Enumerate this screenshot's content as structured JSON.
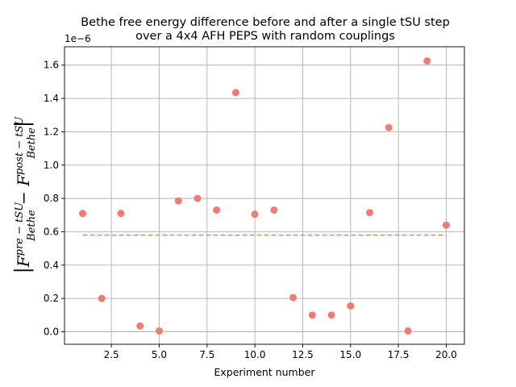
{
  "chart_data": {
    "type": "scatter",
    "title_lines": [
      "Bethe free energy difference before and after a single tSU step",
      "over a 4x4 AFH PEPS with random couplings"
    ],
    "xlabel": "Experiment number",
    "ylabel": {
      "pre": "pre − tSU",
      "post": "post − tSU",
      "sub": "Bethe"
    },
    "offset_text": "1e−6",
    "xlim": [
      0.05,
      20.95
    ],
    "ylim": [
      -0.075,
      1.71
    ],
    "xticks": [
      2.5,
      5.0,
      7.5,
      10.0,
      12.5,
      15.0,
      17.5,
      20.0
    ],
    "xtick_labels": [
      "2.5",
      "5.0",
      "7.5",
      "10.0",
      "12.5",
      "15.0",
      "17.5",
      "20.0"
    ],
    "yticks": [
      0.0,
      0.2,
      0.4,
      0.6,
      0.8,
      1.0,
      1.2,
      1.4,
      1.6
    ],
    "ytick_labels": [
      "0.0",
      "0.2",
      "0.4",
      "0.6",
      "0.8",
      "1.0",
      "1.2",
      "1.4",
      "1.6"
    ],
    "grid": true,
    "point_color": "#f07b72",
    "mean_line_color": "#f07b72",
    "mean_value": 0.58,
    "mean_x_range": [
      1,
      20
    ],
    "points": {
      "x": [
        1,
        2,
        3,
        4,
        5,
        6,
        7,
        8,
        9,
        10,
        11,
        12,
        13,
        14,
        15,
        16,
        17,
        18,
        19,
        20
      ],
      "y": [
        0.71,
        0.2,
        0.71,
        0.035,
        0.005,
        0.785,
        0.8,
        0.73,
        1.435,
        0.705,
        0.73,
        0.205,
        0.1,
        0.1,
        0.155,
        0.715,
        1.225,
        0.005,
        1.625,
        0.64
      ]
    }
  }
}
